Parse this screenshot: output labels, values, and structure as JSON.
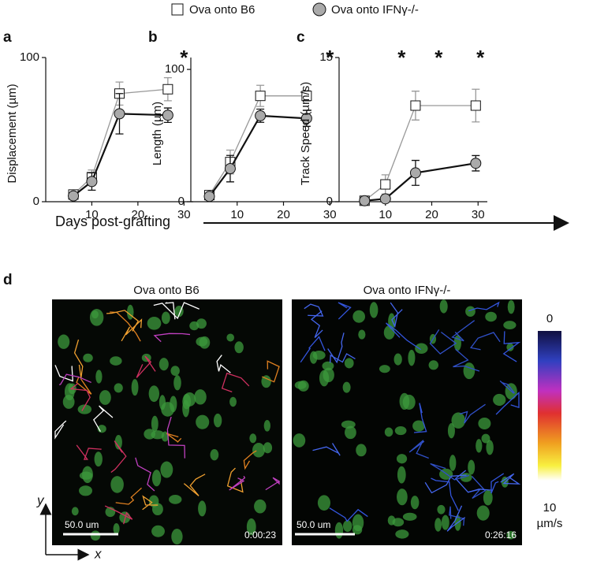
{
  "legend": {
    "series": [
      {
        "name": "Ova onto B6"
      },
      {
        "name": "Ova onto IFNγ-/-"
      }
    ]
  },
  "x_axis_label": "Days post-grafting",
  "chart_data": [
    {
      "type": "line",
      "label": "a",
      "ylabel": "Displacement (µm)",
      "x": [
        6,
        10,
        16,
        26.5
      ],
      "xlim": [
        0,
        32
      ],
      "xticks": [
        10,
        20,
        30
      ],
      "ylim": [
        0,
        100
      ],
      "yticks": [
        0,
        100
      ],
      "annotations": [
        {
          "text": "*",
          "x": 30
        }
      ],
      "series": [
        {
          "name": "Ova onto B6",
          "color": "#999999",
          "values": [
            5,
            17,
            75,
            78
          ],
          "errors": [
            3,
            5,
            8,
            8
          ]
        },
        {
          "name": "Ova onto IFNγ-/-",
          "color": "#111111",
          "values": [
            4,
            14,
            61,
            60
          ],
          "errors": [
            2,
            6,
            14,
            5
          ]
        }
      ]
    },
    {
      "type": "line",
      "label": "b",
      "ylabel": "Length (µm)",
      "x": [
        4,
        8.5,
        15,
        25
      ],
      "xlim": [
        0,
        32
      ],
      "xticks": [
        10,
        20,
        30
      ],
      "ylim": [
        0,
        109
      ],
      "yticks": [
        0,
        100
      ],
      "annotations": [
        {
          "text": "*",
          "x": 30
        }
      ],
      "series": [
        {
          "name": "Ova onto B6",
          "color": "#999999",
          "values": [
            5,
            30,
            80,
            80
          ],
          "errors": [
            3,
            9,
            8,
            4
          ]
        },
        {
          "name": "Ova onto IFNγ-/-",
          "color": "#111111",
          "values": [
            4,
            25,
            65,
            63
          ],
          "errors": [
            2,
            10,
            5,
            6
          ]
        }
      ]
    },
    {
      "type": "line",
      "label": "c",
      "ylabel": "Track Speed (µm/s)",
      "x": [
        5.5,
        10,
        16.5,
        29.5
      ],
      "xlim": [
        0,
        32
      ],
      "xticks": [
        10,
        20,
        30
      ],
      "ylim": [
        0,
        15
      ],
      "yticks": [
        0,
        15
      ],
      "annotations": [
        {
          "text": "*",
          "x": 13.5
        },
        {
          "text": "*",
          "x": 21.5
        },
        {
          "text": "*",
          "x": 30.5
        }
      ],
      "series": [
        {
          "name": "Ova onto B6",
          "color": "#999999",
          "values": [
            0.1,
            1.8,
            10,
            10
          ],
          "errors": [
            0.2,
            1,
            1.5,
            1.7
          ]
        },
        {
          "name": "Ova onto IFNγ-/-",
          "color": "#111111",
          "values": [
            0.1,
            0.3,
            3,
            4
          ],
          "errors": [
            0.2,
            0.3,
            1.3,
            0.8
          ]
        }
      ]
    }
  ],
  "panel_d": {
    "label": "d",
    "left_title": "Ova onto B6",
    "right_title": "Ova onto IFNγ-/-",
    "scale_bar": "50.0 um",
    "left_time": "0:00:23",
    "right_time": "0:26:16",
    "colorbar_top": "0",
    "colorbar_bottom": "10",
    "colorbar_unit": "µm/s",
    "axis_y": "y",
    "axis_x": "x"
  }
}
